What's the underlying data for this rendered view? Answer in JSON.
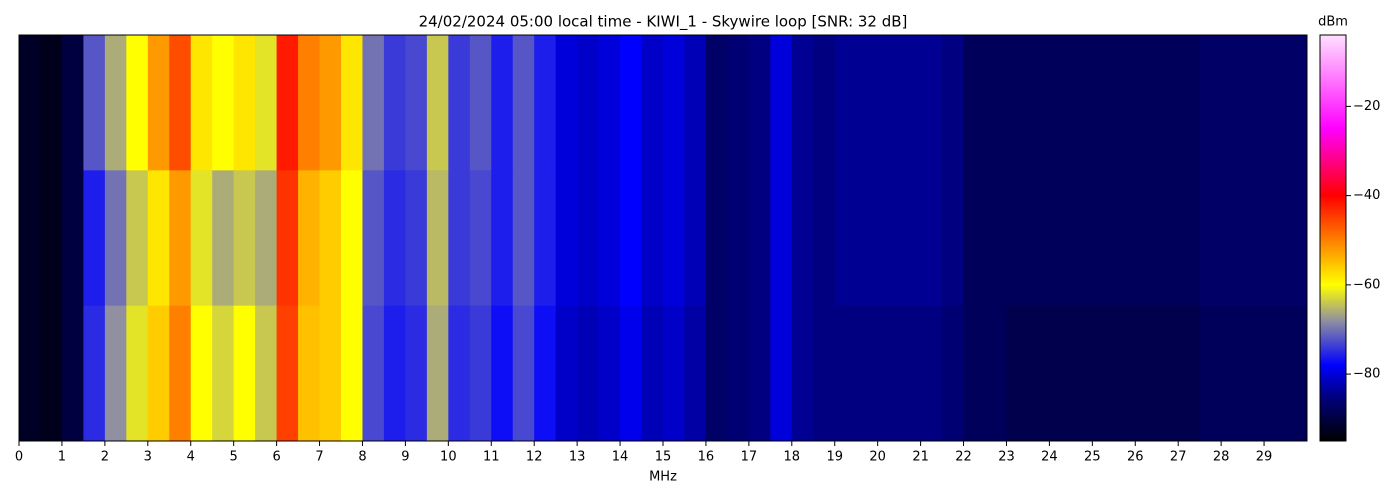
{
  "chart_data": {
    "type": "heatmap",
    "title": "24/02/2024 05:00 local time - KIWI_1 - Skywire loop [SNR: 32 dB]",
    "x_label": "MHz",
    "colorbar_label": "dBm",
    "xlim": [
      0,
      30
    ],
    "xticks": [
      0,
      1,
      2,
      3,
      4,
      5,
      6,
      7,
      8,
      9,
      10,
      11,
      12,
      13,
      14,
      15,
      16,
      17,
      18,
      19,
      20,
      21,
      22,
      23,
      24,
      25,
      26,
      27,
      28,
      29
    ],
    "bins": [
      0,
      0.5,
      1,
      1.5,
      2,
      2.5,
      3,
      3.5,
      4,
      4.5,
      5,
      5.5,
      6,
      6.5,
      7,
      7.5,
      8,
      8.5,
      9,
      9.5,
      10,
      10.5,
      11,
      11.5,
      12,
      12.5,
      13,
      13.5,
      14,
      14.5,
      15,
      15.5,
      16,
      16.5,
      17,
      17.5,
      18,
      18.5,
      19,
      19.5,
      20,
      20.5,
      21,
      21.5,
      22,
      22.5,
      23,
      23.5,
      24,
      24.5,
      25,
      25.5,
      26,
      26.5,
      27,
      27.5,
      28,
      28.5,
      29,
      29.5,
      30
    ],
    "z": [
      [
        -92,
        -93,
        -90,
        -72,
        -66,
        -60,
        -52,
        -46,
        -58,
        -60,
        -58,
        -62,
        -42,
        -50,
        -52,
        -58,
        -70,
        -74,
        -73,
        -64,
        -74,
        -72,
        -76,
        -72,
        -76,
        -80,
        -81,
        -80,
        -78,
        -81,
        -80,
        -82,
        -87,
        -86,
        -85,
        -80,
        -84,
        -85,
        -84,
        -84,
        -84,
        -84,
        -84,
        -85,
        -88,
        -88,
        -88,
        -88,
        -88,
        -88,
        -88,
        -88,
        -88,
        -88,
        -88,
        -87,
        -87,
        -87,
        -87,
        -87
      ],
      [
        -92,
        -93,
        -90,
        -76,
        -70,
        -64,
        -58,
        -52,
        -62,
        -66,
        -64,
        -66,
        -44,
        -54,
        -56,
        -60,
        -72,
        -75,
        -74,
        -65,
        -74,
        -73,
        -76,
        -72,
        -76,
        -80,
        -81,
        -80,
        -78,
        -81,
        -80,
        -82,
        -87,
        -86,
        -85,
        -80,
        -84,
        -85,
        -84,
        -84,
        -84,
        -84,
        -84,
        -85,
        -88,
        -88,
        -88,
        -88,
        -88,
        -88,
        -88,
        -88,
        -88,
        -88,
        -88,
        -87,
        -87,
        -87,
        -87,
        -87
      ],
      [
        -92,
        -93,
        -90,
        -75,
        -68,
        -62,
        -56,
        -50,
        -60,
        -63,
        -60,
        -64,
        -45,
        -55,
        -56,
        -60,
        -73,
        -76,
        -75,
        -66,
        -75,
        -74,
        -77,
        -73,
        -77,
        -81,
        -82,
        -81,
        -79,
        -82,
        -81,
        -83,
        -87,
        -86,
        -85,
        -80,
        -84,
        -85,
        -85,
        -85,
        -85,
        -85,
        -85,
        -86,
        -88,
        -88,
        -89,
        -89,
        -89,
        -89,
        -89,
        -89,
        -89,
        -89,
        -89,
        -88,
        -88,
        -88,
        -88,
        -88
      ]
    ],
    "zlim": [
      -95,
      -4
    ],
    "colorbar_ticks": [
      {
        "value": -80,
        "label": "−80"
      },
      {
        "value": -60,
        "label": "−60"
      },
      {
        "value": -40,
        "label": "−40"
      },
      {
        "value": -20,
        "label": "−20"
      }
    ],
    "colormap": [
      {
        "value": -95,
        "color": "#000000"
      },
      {
        "value": -85,
        "color": "#000080"
      },
      {
        "value": -78,
        "color": "#0000ff"
      },
      {
        "value": -68,
        "color": "#9090a0"
      },
      {
        "value": -60,
        "color": "#ffff00"
      },
      {
        "value": -50,
        "color": "#ff8000"
      },
      {
        "value": -40,
        "color": "#ff0000"
      },
      {
        "value": -25,
        "color": "#ff00ff"
      },
      {
        "value": -4,
        "color": "#ffe0ff"
      }
    ]
  }
}
